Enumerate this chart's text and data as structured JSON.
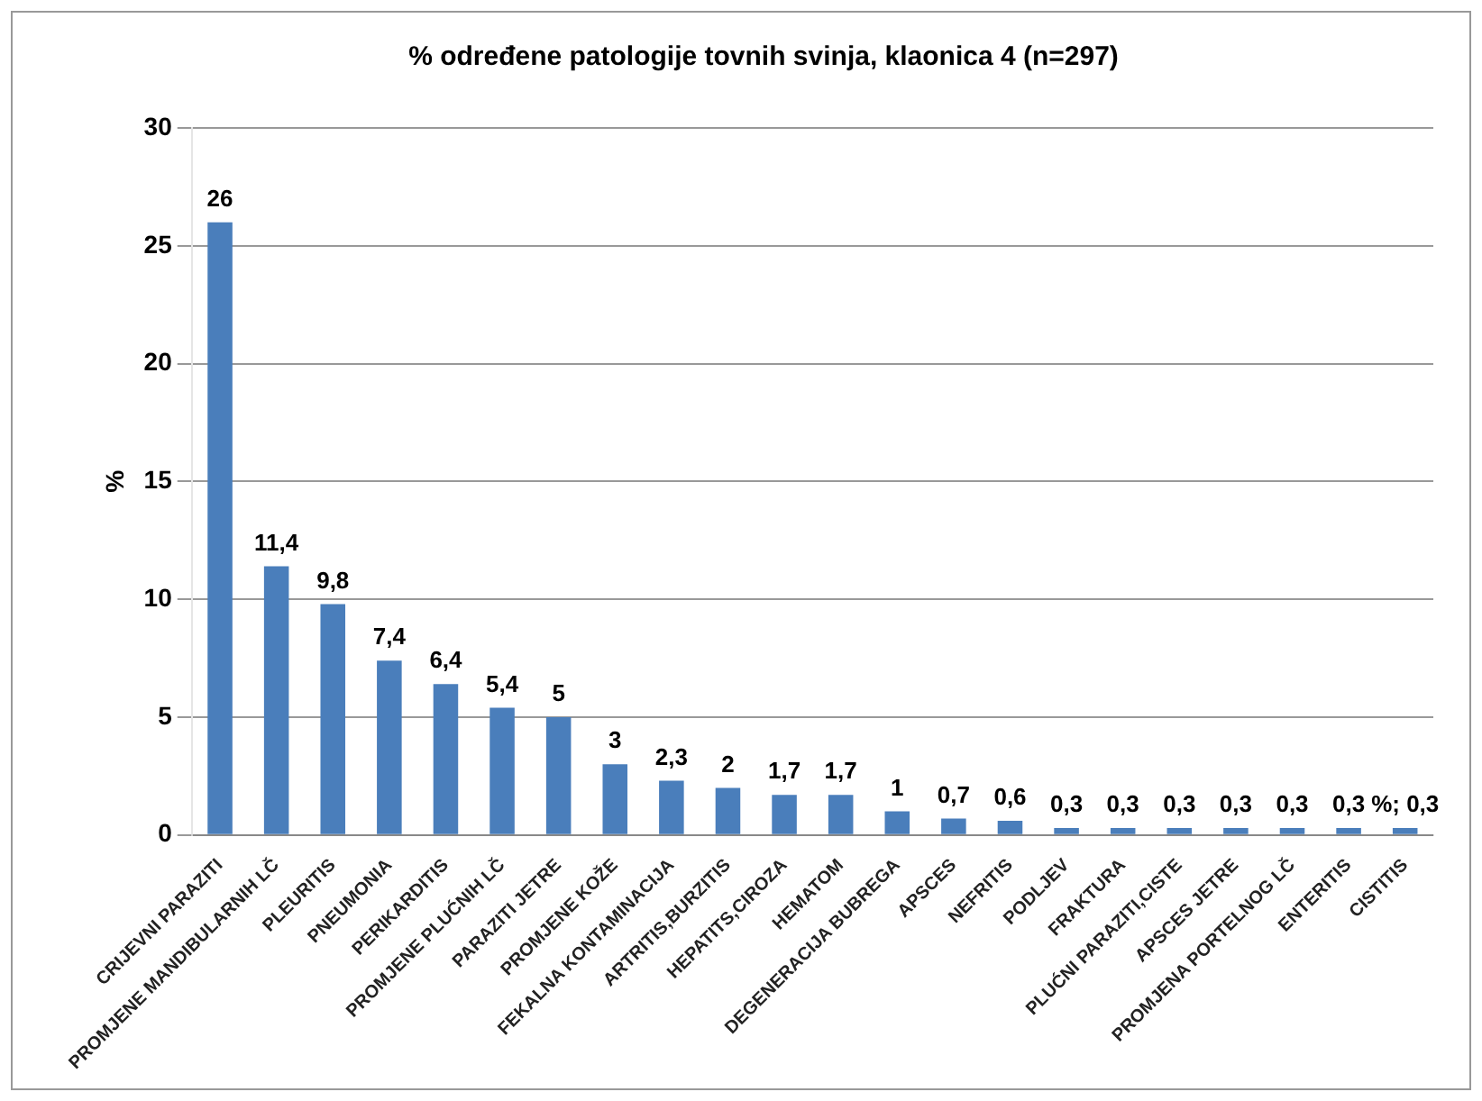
{
  "chart_data": {
    "type": "bar",
    "title": "% određene patologije tovnih svinja, klaonica 4 (n=297)",
    "ylabel": "%",
    "categories": [
      "CRIJEVNI PARAZITI",
      "PROMJENE MANDIBULARNIH LČ",
      "PLEURITIS",
      "PNEUMONIA",
      "PERIKARDITIS",
      "PROMJENE PLUĆNIH LČ",
      "PARAZITI JETRE",
      "PROMJENE KOŽE",
      "FEKALNA KONTAMINACIJA",
      "ARTRITIS,BURZITIS",
      "HEPATITS,CIROZA",
      "HEMATOM",
      "DEGENERACIJA BUBREGA",
      "APSCES",
      "NEFRITIS",
      "PODLJEV",
      "FRAKTURA",
      "PLUĆNI PARAZITI,CISTE",
      "APSCES JETRE",
      "PROMJENA PORTELNOG LČ",
      "ENTERITIS",
      "CISTITIS"
    ],
    "values": [
      26,
      11.4,
      9.8,
      7.4,
      6.4,
      5.4,
      5,
      3,
      2.3,
      2,
      1.7,
      1.7,
      1,
      0.7,
      0.6,
      0.3,
      0.3,
      0.3,
      0.3,
      0.3,
      0.3,
      0.3
    ],
    "value_labels": [
      "26",
      "11,4",
      "9,8",
      "7,4",
      "6,4",
      "5,4",
      "5",
      "3",
      "2,3",
      "2",
      "1,7",
      "1,7",
      "1",
      "0,7",
      "0,6",
      "0,3",
      "0,3",
      "0,3",
      "0,3",
      "0,3",
      "0,3",
      "%; 0,3"
    ],
    "color": "#4a7ebb",
    "ylim": [
      0,
      30
    ],
    "yticks": [
      0,
      5,
      10,
      15,
      20,
      25,
      30
    ],
    "grid": "y",
    "legend": false
  }
}
